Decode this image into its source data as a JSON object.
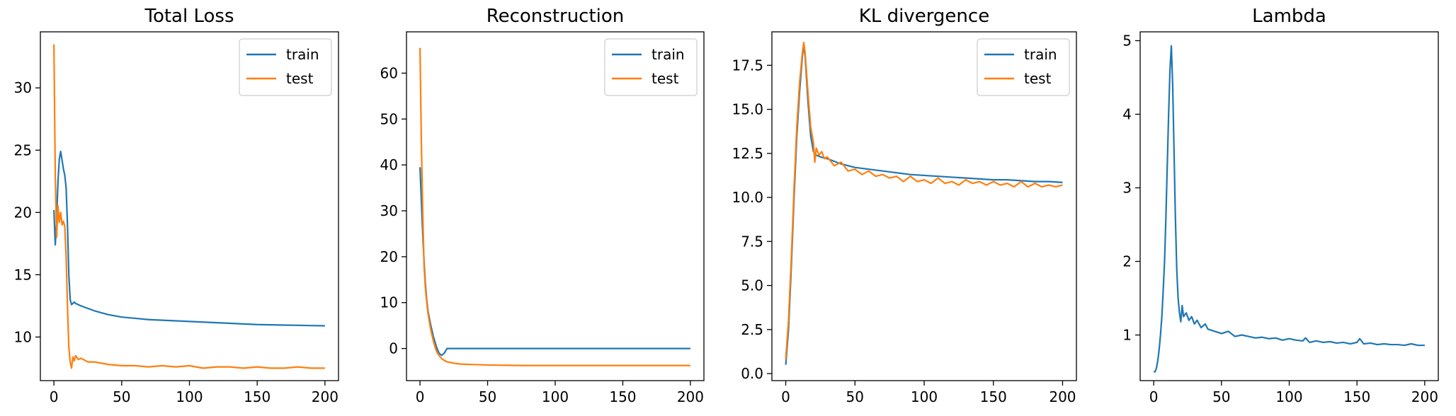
{
  "colors": {
    "train": "#1f77b4",
    "test": "#ff7f0e"
  },
  "chart_data": [
    {
      "type": "line",
      "title": "Total Loss",
      "xlim": [
        -10,
        210
      ],
      "ylim": [
        6.5,
        34.5
      ],
      "xticks": [
        0,
        50,
        100,
        150,
        200
      ],
      "yticks": [
        10,
        15,
        20,
        25,
        30
      ],
      "legend": "top-right",
      "series": [
        {
          "name": "train",
          "color": "#1f77b4",
          "x": [
            0,
            1,
            2,
            3,
            4,
            5,
            6,
            7,
            8,
            9,
            10,
            11,
            12,
            13,
            14,
            15,
            16,
            18,
            20,
            25,
            30,
            40,
            50,
            60,
            70,
            80,
            90,
            100,
            110,
            120,
            130,
            140,
            150,
            160,
            170,
            180,
            190,
            200
          ],
          "y": [
            20.2,
            17.4,
            19.5,
            22.5,
            24.3,
            24.9,
            24.2,
            23.5,
            23.0,
            22.0,
            19.0,
            15.0,
            13.0,
            12.6,
            12.7,
            12.8,
            12.7,
            12.6,
            12.5,
            12.3,
            12.1,
            11.8,
            11.6,
            11.5,
            11.4,
            11.35,
            11.3,
            11.25,
            11.2,
            11.15,
            11.1,
            11.05,
            11.0,
            10.98,
            10.96,
            10.94,
            10.92,
            10.9
          ]
        },
        {
          "name": "test",
          "color": "#ff7f0e",
          "x": [
            0,
            1,
            2,
            3,
            4,
            5,
            6,
            7,
            8,
            9,
            10,
            11,
            12,
            13,
            14,
            15,
            16,
            18,
            20,
            25,
            30,
            40,
            50,
            60,
            70,
            80,
            90,
            100,
            110,
            120,
            130,
            140,
            150,
            160,
            170,
            180,
            190,
            200
          ],
          "y": [
            33.5,
            23.0,
            18.0,
            20.5,
            19.2,
            20.0,
            19.0,
            19.3,
            18.9,
            16.5,
            12.5,
            9.2,
            8.0,
            7.5,
            8.4,
            8.1,
            8.5,
            8.2,
            8.3,
            8.0,
            8.0,
            7.8,
            7.7,
            7.7,
            7.6,
            7.7,
            7.6,
            7.7,
            7.5,
            7.6,
            7.6,
            7.5,
            7.6,
            7.5,
            7.5,
            7.6,
            7.5,
            7.5
          ]
        }
      ]
    },
    {
      "type": "line",
      "title": "Reconstruction",
      "xlim": [
        -10,
        210
      ],
      "ylim": [
        -7,
        69
      ],
      "xticks": [
        0,
        50,
        100,
        150,
        200
      ],
      "yticks": [
        0,
        10,
        20,
        30,
        40,
        50,
        60
      ],
      "legend": "top-right",
      "series": [
        {
          "name": "train",
          "color": "#1f77b4",
          "x": [
            0,
            1,
            2,
            3,
            4,
            5,
            6,
            8,
            10,
            12,
            14,
            16,
            18,
            20,
            25,
            30,
            40,
            50,
            75,
            100,
            125,
            150,
            175,
            200
          ],
          "y": [
            39.5,
            32.0,
            25.0,
            19.0,
            14.0,
            10.5,
            8.0,
            5.0,
            2.5,
            0.5,
            -1.0,
            -1.5,
            -1.0,
            0.0,
            0.0,
            0.0,
            0.0,
            0.0,
            0.0,
            0.0,
            0.0,
            0.0,
            0.0,
            0.0
          ]
        },
        {
          "name": "test",
          "color": "#ff7f0e",
          "x": [
            0,
            1,
            2,
            3,
            4,
            5,
            6,
            8,
            10,
            12,
            14,
            16,
            18,
            20,
            25,
            30,
            40,
            50,
            75,
            100,
            125,
            150,
            175,
            200
          ],
          "y": [
            65.5,
            45.0,
            30.0,
            18.0,
            13.0,
            10.0,
            7.5,
            4.0,
            1.5,
            -0.5,
            -1.5,
            -2.2,
            -2.6,
            -2.9,
            -3.2,
            -3.4,
            -3.5,
            -3.6,
            -3.7,
            -3.7,
            -3.7,
            -3.7,
            -3.7,
            -3.7
          ]
        }
      ]
    },
    {
      "type": "line",
      "title": "KL divergence",
      "xlim": [
        -10,
        210
      ],
      "ylim": [
        -0.4,
        19.4
      ],
      "xticks": [
        0,
        50,
        100,
        150,
        200
      ],
      "yticks": [
        0.0,
        2.5,
        5.0,
        7.5,
        10.0,
        12.5,
        15.0,
        17.5
      ],
      "yticklabels": [
        "0.0",
        "2.5",
        "5.0",
        "7.5",
        "10.0",
        "12.5",
        "15.0",
        "17.5"
      ],
      "legend": "top-right",
      "series": [
        {
          "name": "train",
          "color": "#1f77b4",
          "x": [
            0,
            2,
            4,
            6,
            8,
            10,
            12,
            13,
            14,
            16,
            18,
            20,
            22,
            25,
            30,
            40,
            50,
            60,
            70,
            80,
            90,
            100,
            110,
            120,
            130,
            140,
            150,
            160,
            170,
            180,
            190,
            200
          ],
          "y": [
            0.5,
            2.5,
            6.0,
            10.0,
            13.5,
            16.0,
            18.0,
            18.7,
            18.0,
            15.5,
            13.5,
            12.6,
            12.4,
            12.3,
            12.2,
            11.9,
            11.7,
            11.6,
            11.5,
            11.4,
            11.3,
            11.25,
            11.2,
            11.15,
            11.1,
            11.05,
            11.0,
            11.0,
            10.95,
            10.9,
            10.9,
            10.85
          ]
        },
        {
          "name": "test",
          "color": "#ff7f0e",
          "x": [
            0,
            2,
            4,
            6,
            8,
            10,
            12,
            13,
            14,
            16,
            18,
            20,
            21,
            22,
            24,
            26,
            28,
            30,
            35,
            40,
            45,
            50,
            55,
            60,
            65,
            70,
            75,
            80,
            85,
            90,
            95,
            100,
            105,
            110,
            115,
            120,
            125,
            130,
            135,
            140,
            145,
            150,
            155,
            160,
            165,
            170,
            175,
            180,
            185,
            190,
            195,
            200
          ],
          "y": [
            0.8,
            3.0,
            6.5,
            10.5,
            14.0,
            16.5,
            18.2,
            18.8,
            18.2,
            16.0,
            14.0,
            13.1,
            12.0,
            12.8,
            12.4,
            12.6,
            12.2,
            12.3,
            11.8,
            12.0,
            11.5,
            11.6,
            11.3,
            11.5,
            11.2,
            11.3,
            11.1,
            11.2,
            10.9,
            11.2,
            10.9,
            11.0,
            10.8,
            11.1,
            10.8,
            10.9,
            10.7,
            11.0,
            10.8,
            10.9,
            10.7,
            10.9,
            10.7,
            10.8,
            10.6,
            10.9,
            10.6,
            10.8,
            10.6,
            10.7,
            10.6,
            10.7
          ]
        }
      ]
    },
    {
      "type": "line",
      "title": "Lambda",
      "xlim": [
        -10,
        210
      ],
      "ylim": [
        0.38,
        5.12
      ],
      "xticks": [
        0,
        50,
        100,
        150,
        200
      ],
      "yticks": [
        1,
        2,
        3,
        4,
        5
      ],
      "legend": "none",
      "series": [
        {
          "name": "",
          "color": "#1f77b4",
          "x": [
            0,
            1,
            2,
            3,
            4,
            5,
            6,
            7,
            8,
            9,
            10,
            11,
            12,
            13,
            14,
            15,
            16,
            17,
            18,
            19,
            20,
            21,
            22,
            24,
            26,
            28,
            30,
            32,
            35,
            38,
            40,
            45,
            50,
            55,
            60,
            65,
            70,
            75,
            80,
            85,
            90,
            95,
            100,
            105,
            110,
            112,
            115,
            120,
            125,
            130,
            135,
            140,
            145,
            150,
            152,
            155,
            160,
            165,
            170,
            175,
            180,
            185,
            190,
            195,
            200
          ],
          "y": [
            0.5,
            0.5,
            0.55,
            0.65,
            0.8,
            1.0,
            1.25,
            1.6,
            2.0,
            2.6,
            3.3,
            4.0,
            4.6,
            4.93,
            4.4,
            3.5,
            2.6,
            1.9,
            1.5,
            1.3,
            1.18,
            1.4,
            1.25,
            1.3,
            1.2,
            1.25,
            1.15,
            1.2,
            1.1,
            1.15,
            1.08,
            1.05,
            1.02,
            1.05,
            0.98,
            1.0,
            0.98,
            0.96,
            0.97,
            0.95,
            0.96,
            0.93,
            0.95,
            0.93,
            0.92,
            0.96,
            0.9,
            0.92,
            0.9,
            0.91,
            0.89,
            0.9,
            0.88,
            0.9,
            0.95,
            0.88,
            0.89,
            0.87,
            0.88,
            0.87,
            0.87,
            0.86,
            0.88,
            0.86,
            0.86
          ]
        }
      ]
    }
  ]
}
